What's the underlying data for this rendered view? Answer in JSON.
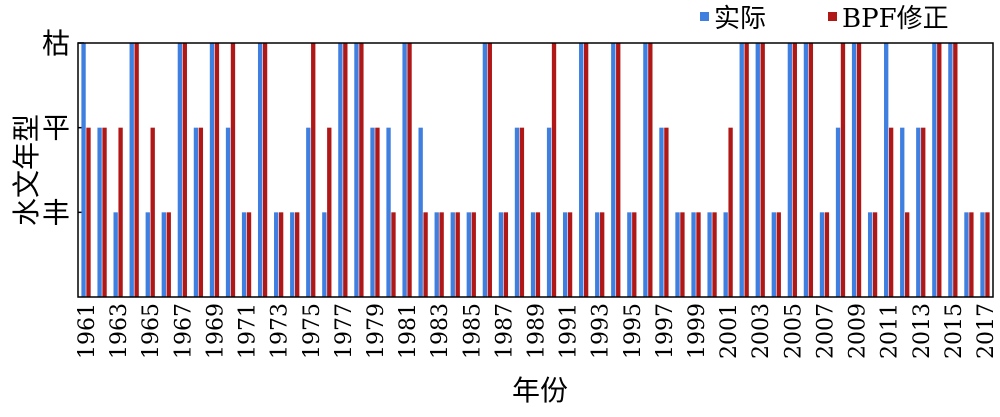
{
  "chart_data": {
    "type": "bar",
    "xlabel": "年份",
    "ylabel": "水文年型",
    "categories": [
      "1961",
      null,
      "1963",
      null,
      "1965",
      null,
      "1967",
      null,
      "1969",
      null,
      "1971",
      null,
      "1973",
      null,
      "1975",
      null,
      "1977",
      null,
      "1979",
      null,
      "1981",
      null,
      "1983",
      null,
      "1985",
      null,
      "1987",
      null,
      "1989",
      null,
      "1991",
      null,
      "1993",
      null,
      "1995",
      null,
      "1997",
      null,
      "1999",
      null,
      "2001",
      null,
      "2003",
      null,
      "2005",
      null,
      "2007",
      null,
      "2009",
      null,
      "2011",
      null,
      "2013",
      null,
      "2015",
      null,
      "2017"
    ],
    "series": [
      {
        "name": "实际",
        "color": "#3f7fe0",
        "values": [
          3,
          2,
          1,
          3,
          1,
          1,
          3,
          2,
          3,
          2,
          1,
          3,
          1,
          1,
          2,
          1,
          3,
          3,
          2,
          2,
          3,
          2,
          1,
          1,
          1,
          3,
          1,
          2,
          1,
          2,
          1,
          3,
          1,
          3,
          1,
          3,
          2,
          1,
          1,
          1,
          1,
          3,
          3,
          1,
          3,
          3,
          1,
          2,
          3,
          1,
          3,
          2,
          2,
          3,
          3,
          1,
          1
        ]
      },
      {
        "name": "BPF修正",
        "color": "#b01818",
        "values": [
          2,
          2,
          2,
          3,
          2,
          1,
          3,
          2,
          3,
          3,
          1,
          3,
          1,
          1,
          3,
          2,
          3,
          3,
          2,
          1,
          3,
          1,
          1,
          1,
          1,
          3,
          1,
          2,
          1,
          3,
          1,
          3,
          1,
          3,
          1,
          3,
          2,
          1,
          1,
          1,
          2,
          3,
          3,
          1,
          3,
          3,
          1,
          3,
          3,
          1,
          2,
          1,
          2,
          3,
          3,
          1,
          1
        ]
      }
    ],
    "ylim": [
      0,
      3
    ],
    "yticks": [
      {
        "value": 1,
        "label": "丰"
      },
      {
        "value": 2,
        "label": "平"
      },
      {
        "value": 3,
        "label": "枯"
      }
    ],
    "legend": "top-right"
  }
}
